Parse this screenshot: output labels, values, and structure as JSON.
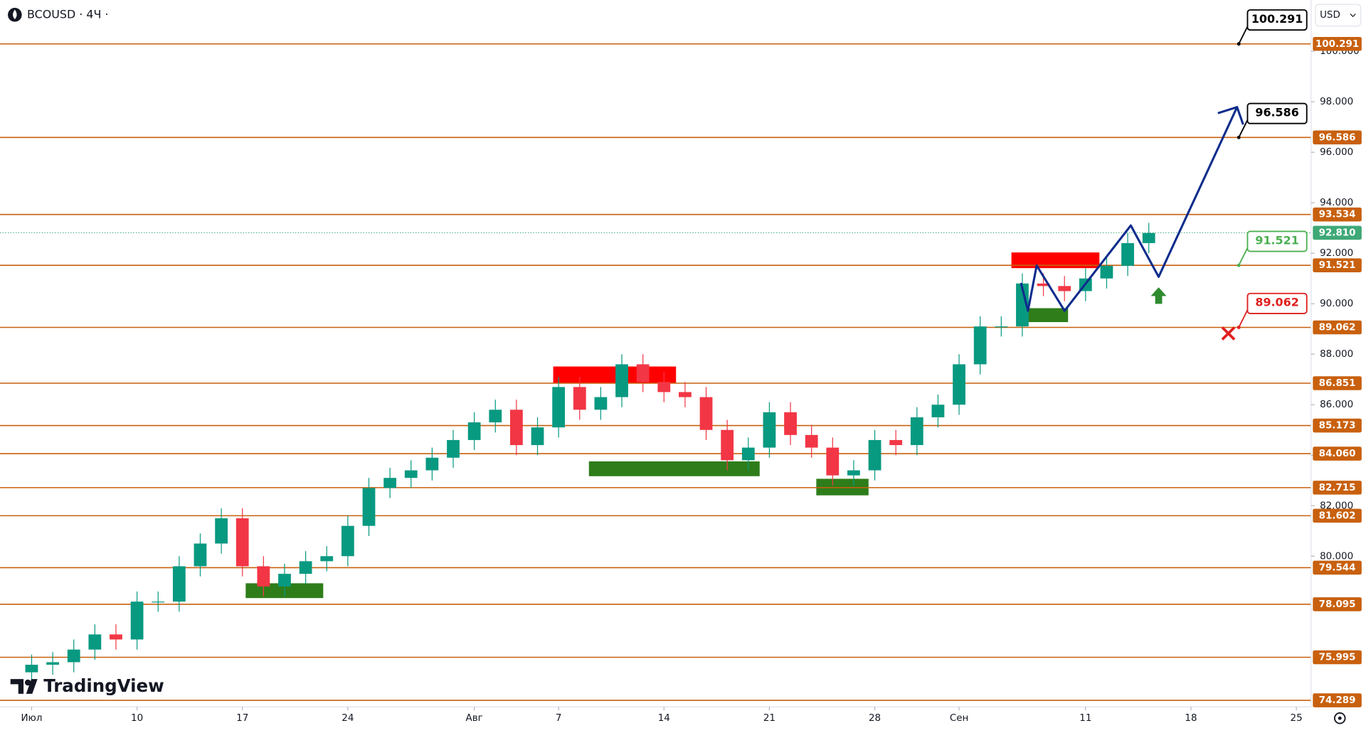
{
  "chart_data": {
    "type": "candlestick",
    "title": "BCOUSD · 4Ч ·",
    "currency": "USD",
    "watermark": "TradingView",
    "xlim": [
      -1.5,
      60.7
    ],
    "xticks": [
      {
        "value": 0,
        "label": "Июл"
      },
      {
        "value": 5,
        "label": "10"
      },
      {
        "value": 10,
        "label": "17"
      },
      {
        "value": 15,
        "label": "24"
      },
      {
        "value": 21,
        "label": "Авг"
      },
      {
        "value": 25,
        "label": "7"
      },
      {
        "value": 30,
        "label": "14"
      },
      {
        "value": 35,
        "label": "21"
      },
      {
        "value": 40,
        "label": "28"
      },
      {
        "value": 44,
        "label": "Сен"
      },
      {
        "value": 50,
        "label": "11"
      },
      {
        "value": 55,
        "label": "18"
      },
      {
        "value": 60,
        "label": "25"
      }
    ],
    "ylim": [
      74.03,
      102.03
    ],
    "yticks": [
      {
        "value": 80,
        "label": "80.000"
      },
      {
        "value": 82,
        "label": "82.000"
      },
      {
        "value": 84,
        "label": "84.000"
      },
      {
        "value": 86,
        "label": "86.000"
      },
      {
        "value": 88,
        "label": "88.000"
      },
      {
        "value": 90,
        "label": "90.000"
      },
      {
        "value": 92,
        "label": "92.000"
      },
      {
        "value": 94,
        "label": "94.000"
      },
      {
        "value": 96,
        "label": "96.000"
      },
      {
        "value": 98,
        "label": "98.000"
      },
      {
        "value": 100,
        "label": "100.000"
      }
    ],
    "grid": false,
    "up_color": "#089981",
    "down_color": "#f23645",
    "x": [
      0,
      1,
      2,
      3,
      4,
      5,
      6,
      7,
      8,
      9,
      10,
      11,
      12,
      13,
      14,
      15,
      16,
      17,
      18,
      19,
      20,
      21,
      22,
      23,
      24,
      25,
      26,
      27,
      28,
      29,
      30,
      31,
      32,
      33,
      34,
      35,
      36,
      37,
      38,
      39,
      40,
      41,
      42,
      43,
      44,
      45,
      46,
      47,
      48,
      49,
      50,
      51,
      52,
      53
    ],
    "open": [
      75.4,
      75.7,
      75.8,
      76.3,
      76.9,
      76.7,
      78.2,
      78.2,
      79.6,
      80.5,
      81.5,
      79.6,
      78.8,
      79.3,
      79.8,
      80.0,
      81.2,
      82.7,
      83.1,
      83.4,
      83.9,
      84.6,
      85.3,
      85.8,
      84.4,
      85.1,
      86.7,
      85.8,
      86.3,
      87.6,
      86.9,
      86.5,
      86.3,
      85.0,
      83.8,
      84.3,
      85.7,
      84.8,
      84.3,
      83.2,
      83.4,
      84.6,
      84.4,
      85.5,
      86.0,
      87.6,
      89.1,
      89.1,
      90.8,
      90.7,
      90.5,
      91.0,
      91.5,
      92.4
    ],
    "high": [
      76.1,
      76.2,
      76.7,
      77.3,
      77.3,
      78.6,
      78.6,
      80.0,
      80.9,
      81.9,
      81.9,
      80.0,
      79.7,
      80.2,
      80.4,
      81.6,
      83.1,
      83.5,
      83.8,
      84.3,
      85.0,
      85.7,
      86.2,
      86.2,
      85.5,
      87.1,
      87.1,
      86.7,
      88.0,
      88.0,
      87.3,
      86.9,
      86.7,
      85.4,
      84.7,
      86.1,
      86.1,
      85.2,
      84.7,
      83.8,
      85.0,
      85.0,
      85.9,
      86.4,
      88.0,
      89.5,
      89.5,
      91.2,
      91.2,
      91.1,
      91.4,
      91.9,
      92.8,
      93.2
    ],
    "low": [
      75.0,
      75.3,
      75.4,
      75.9,
      76.3,
      76.3,
      77.8,
      77.8,
      79.2,
      80.1,
      79.2,
      78.4,
      78.4,
      78.9,
      79.4,
      79.6,
      80.8,
      82.3,
      82.7,
      83.0,
      83.5,
      84.2,
      84.9,
      84.0,
      84.0,
      84.7,
      85.4,
      85.4,
      85.9,
      86.5,
      86.1,
      85.9,
      84.6,
      83.4,
      83.4,
      83.9,
      84.4,
      83.9,
      82.8,
      82.8,
      83.0,
      84.0,
      84.0,
      85.1,
      85.6,
      87.2,
      88.7,
      88.7,
      90.3,
      90.1,
      90.1,
      90.6,
      91.1,
      92.0
    ],
    "close": [
      75.7,
      75.8,
      76.3,
      76.9,
      76.7,
      78.2,
      78.2,
      79.6,
      80.5,
      81.5,
      79.6,
      78.8,
      79.3,
      79.8,
      80.0,
      81.2,
      82.7,
      83.1,
      83.4,
      83.9,
      84.6,
      85.3,
      85.8,
      84.4,
      85.1,
      86.7,
      85.8,
      86.3,
      87.6,
      86.9,
      86.5,
      86.3,
      85.0,
      83.8,
      84.3,
      85.7,
      84.8,
      84.3,
      83.2,
      83.4,
      84.6,
      84.4,
      85.5,
      86.0,
      87.6,
      89.1,
      89.1,
      90.8,
      90.7,
      90.5,
      91.0,
      91.5,
      92.4,
      92.8
    ],
    "levels": {
      "color": "#c8600e",
      "values": [
        100.291,
        96.586,
        93.534,
        91.521,
        89.062,
        86.851,
        85.173,
        84.06,
        82.715,
        81.602,
        79.544,
        78.095,
        75.995,
        74.289
      ],
      "value_labels": [
        "100.291",
        "96.586",
        "93.534",
        "91.521",
        "89.062",
        "86.851",
        "85.173",
        "84.060",
        "82.715",
        "81.602",
        "79.544",
        "78.095",
        "75.995",
        "74.289"
      ]
    },
    "last_price": {
      "value": 92.81,
      "label": "92.810",
      "color": "#3fa877"
    },
    "targets": [
      {
        "value": 100.291,
        "color": "#000000"
      },
      {
        "value": 96.586,
        "color": "#000000"
      },
      {
        "value": 91.521,
        "color": "#4caf50"
      },
      {
        "value": 89.062,
        "color": "#e01e1e"
      }
    ]
  }
}
